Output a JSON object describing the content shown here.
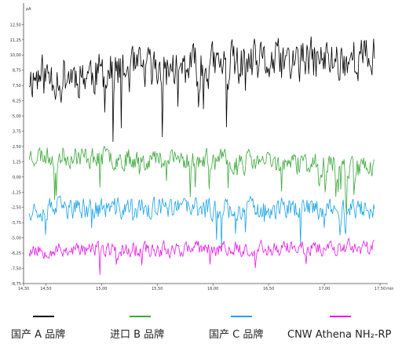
{
  "chart_data": {
    "type": "line",
    "y_unit": "pA",
    "x_unit": "min",
    "xlim": [
      14.3,
      17.5
    ],
    "ylim": [
      -8.75,
      14.0
    ],
    "x_ticks": [
      "14,30",
      "14,50",
      "15,00",
      "15,50",
      "16,00",
      "16,50",
      "17,00",
      "17,50"
    ],
    "x_tick_values": [
      14.3,
      14.5,
      15.0,
      15.5,
      16.0,
      16.5,
      17.0,
      17.5
    ],
    "y_ticks": [
      "12,50",
      "11,25",
      "10,00",
      "8,75",
      "7,50",
      "6,25",
      "5,00",
      "3,75",
      "2,50",
      "1,25",
      "0,00",
      "-1,25",
      "-2,50",
      "-3,75",
      "-5,00",
      "-6,25",
      "-7,50",
      "-8,75"
    ],
    "y_tick_values": [
      12.5,
      11.25,
      10.0,
      8.75,
      7.5,
      6.25,
      5.0,
      3.75,
      2.5,
      1.25,
      0.0,
      -1.25,
      -2.5,
      -3.75,
      -5.0,
      -6.25,
      -7.5,
      -8.75
    ],
    "grid": false,
    "legend_position": "bottom",
    "series": [
      {
        "name": "国产 A 品牌",
        "color": "#000000",
        "baseline": 8.2,
        "noise": 1.6,
        "trend": 1.6,
        "seed": 11
      },
      {
        "name": "进口 B 品牌",
        "color": "#3aa83a",
        "baseline": 1.8,
        "noise": 0.8,
        "trend": -0.9,
        "seed": 23
      },
      {
        "name": "国产 C 品牌",
        "color": "#1aa3e6",
        "baseline": -2.6,
        "noise": 0.8,
        "trend": 0.0,
        "seed": 37
      },
      {
        "name": "CNW Athena NH₂-RP",
        "color": "#e619e6",
        "baseline": -6.0,
        "noise": 0.55,
        "trend": 0.2,
        "seed": 53
      }
    ]
  }
}
